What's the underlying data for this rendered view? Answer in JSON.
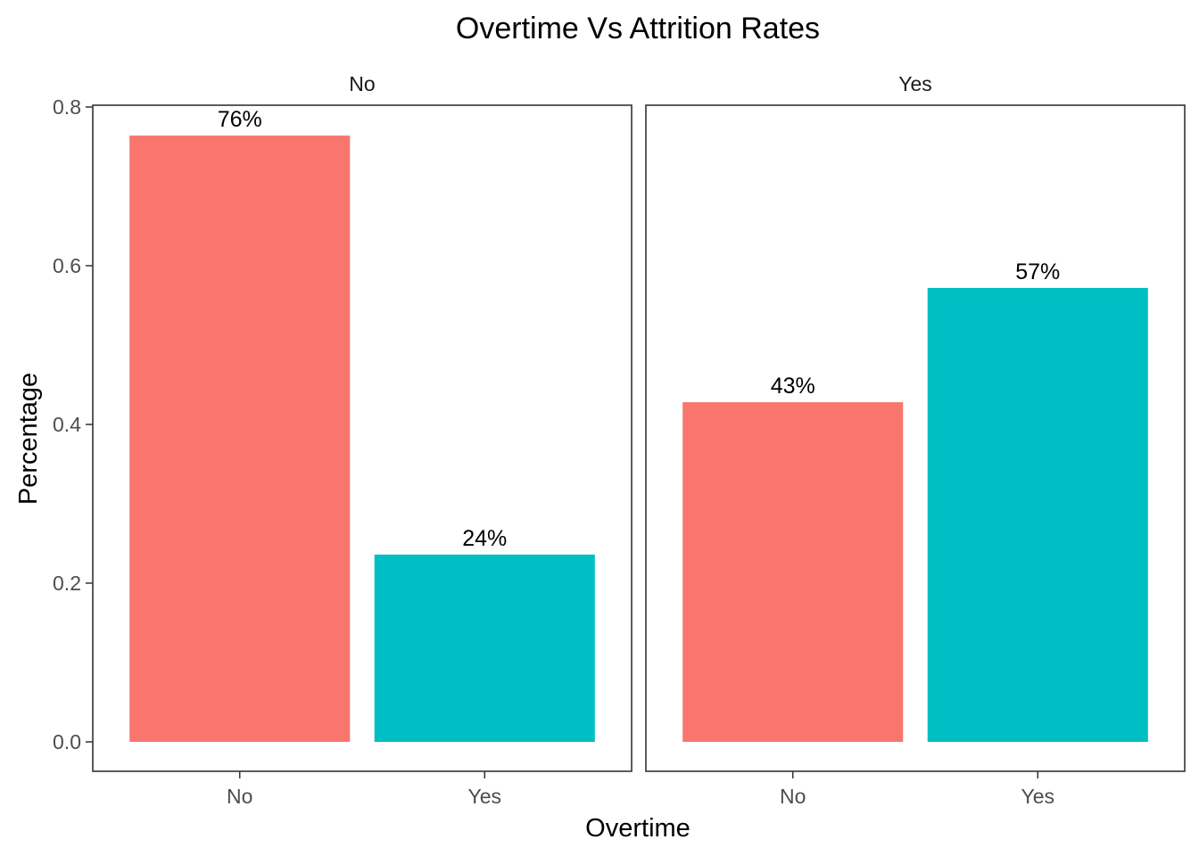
{
  "chart_data": {
    "type": "bar",
    "title": "Overtime Vs Attrition Rates",
    "xlabel": "Overtime",
    "ylabel": "Percentage",
    "ylim": [
      0,
      0.8
    ],
    "yticks": [
      "0.0",
      "0.2",
      "0.4",
      "0.6",
      "0.8"
    ],
    "categories": [
      "No",
      "Yes"
    ],
    "colors": {
      "No": "#F8766D",
      "Yes": "#00BFC4"
    },
    "legend": "none",
    "grid": false,
    "panels": [
      {
        "name": "No",
        "values": [
          0.764,
          0.236
        ],
        "labels": [
          "76%",
          "24%"
        ]
      },
      {
        "name": "Yes",
        "values": [
          0.428,
          0.572
        ],
        "labels": [
          "43%",
          "57%"
        ]
      }
    ]
  }
}
